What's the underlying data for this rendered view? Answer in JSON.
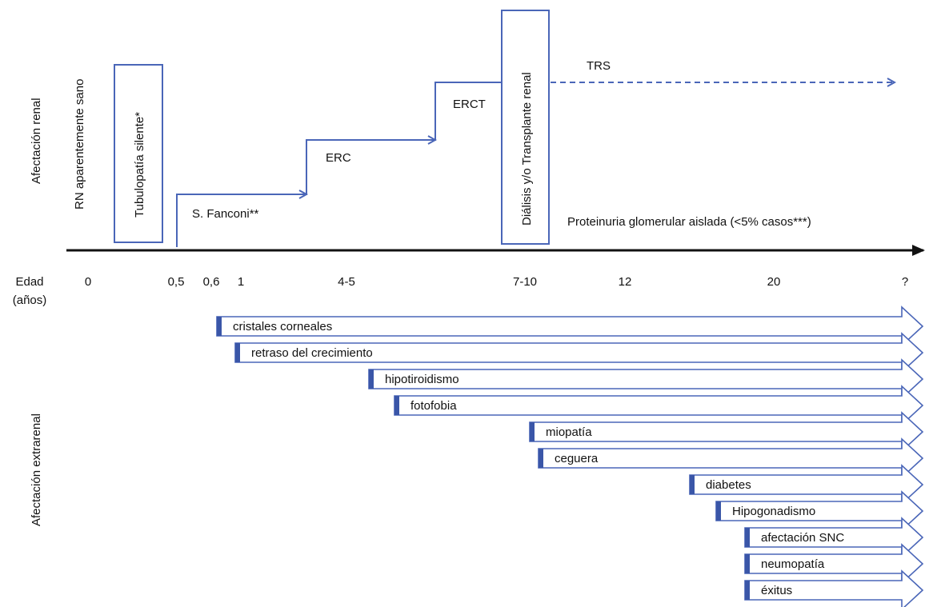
{
  "colors": {
    "stroke": "#4a66b8",
    "fill": "#ffffff",
    "marker": "#3a56a8",
    "axis": "#111111",
    "text": "#111111"
  },
  "side_labels": {
    "renal": "Afectación renal",
    "extrarenal": "Afectación extrarenal"
  },
  "stages": {
    "rn": "RN aparentemente sano",
    "tubulopatia": "Tubulopatía silente*",
    "fanconi": "S. Fanconi**",
    "erc": "ERC",
    "erct": "ERCT",
    "dialisis": "Diálisis y/o Transplante renal",
    "trs": "TRS",
    "proteinuria": "Proteinuria glomerular aislada (<5% casos***)"
  },
  "axis": {
    "title_line1": "Edad",
    "title_line2": "(años)",
    "ticks": [
      "0",
      "0,5",
      "0,6",
      "1",
      "4-5",
      "7-10",
      "12",
      "20",
      "?"
    ]
  },
  "extrarenal_items": [
    "cristales corneales",
    "retraso del crecimiento",
    "hipotiroidismo",
    "fotofobia",
    "miopatía",
    "ceguera",
    "diabetes",
    "Hipogonadismo",
    "afectación SNC",
    "neumopatía",
    "éxitus"
  ]
}
